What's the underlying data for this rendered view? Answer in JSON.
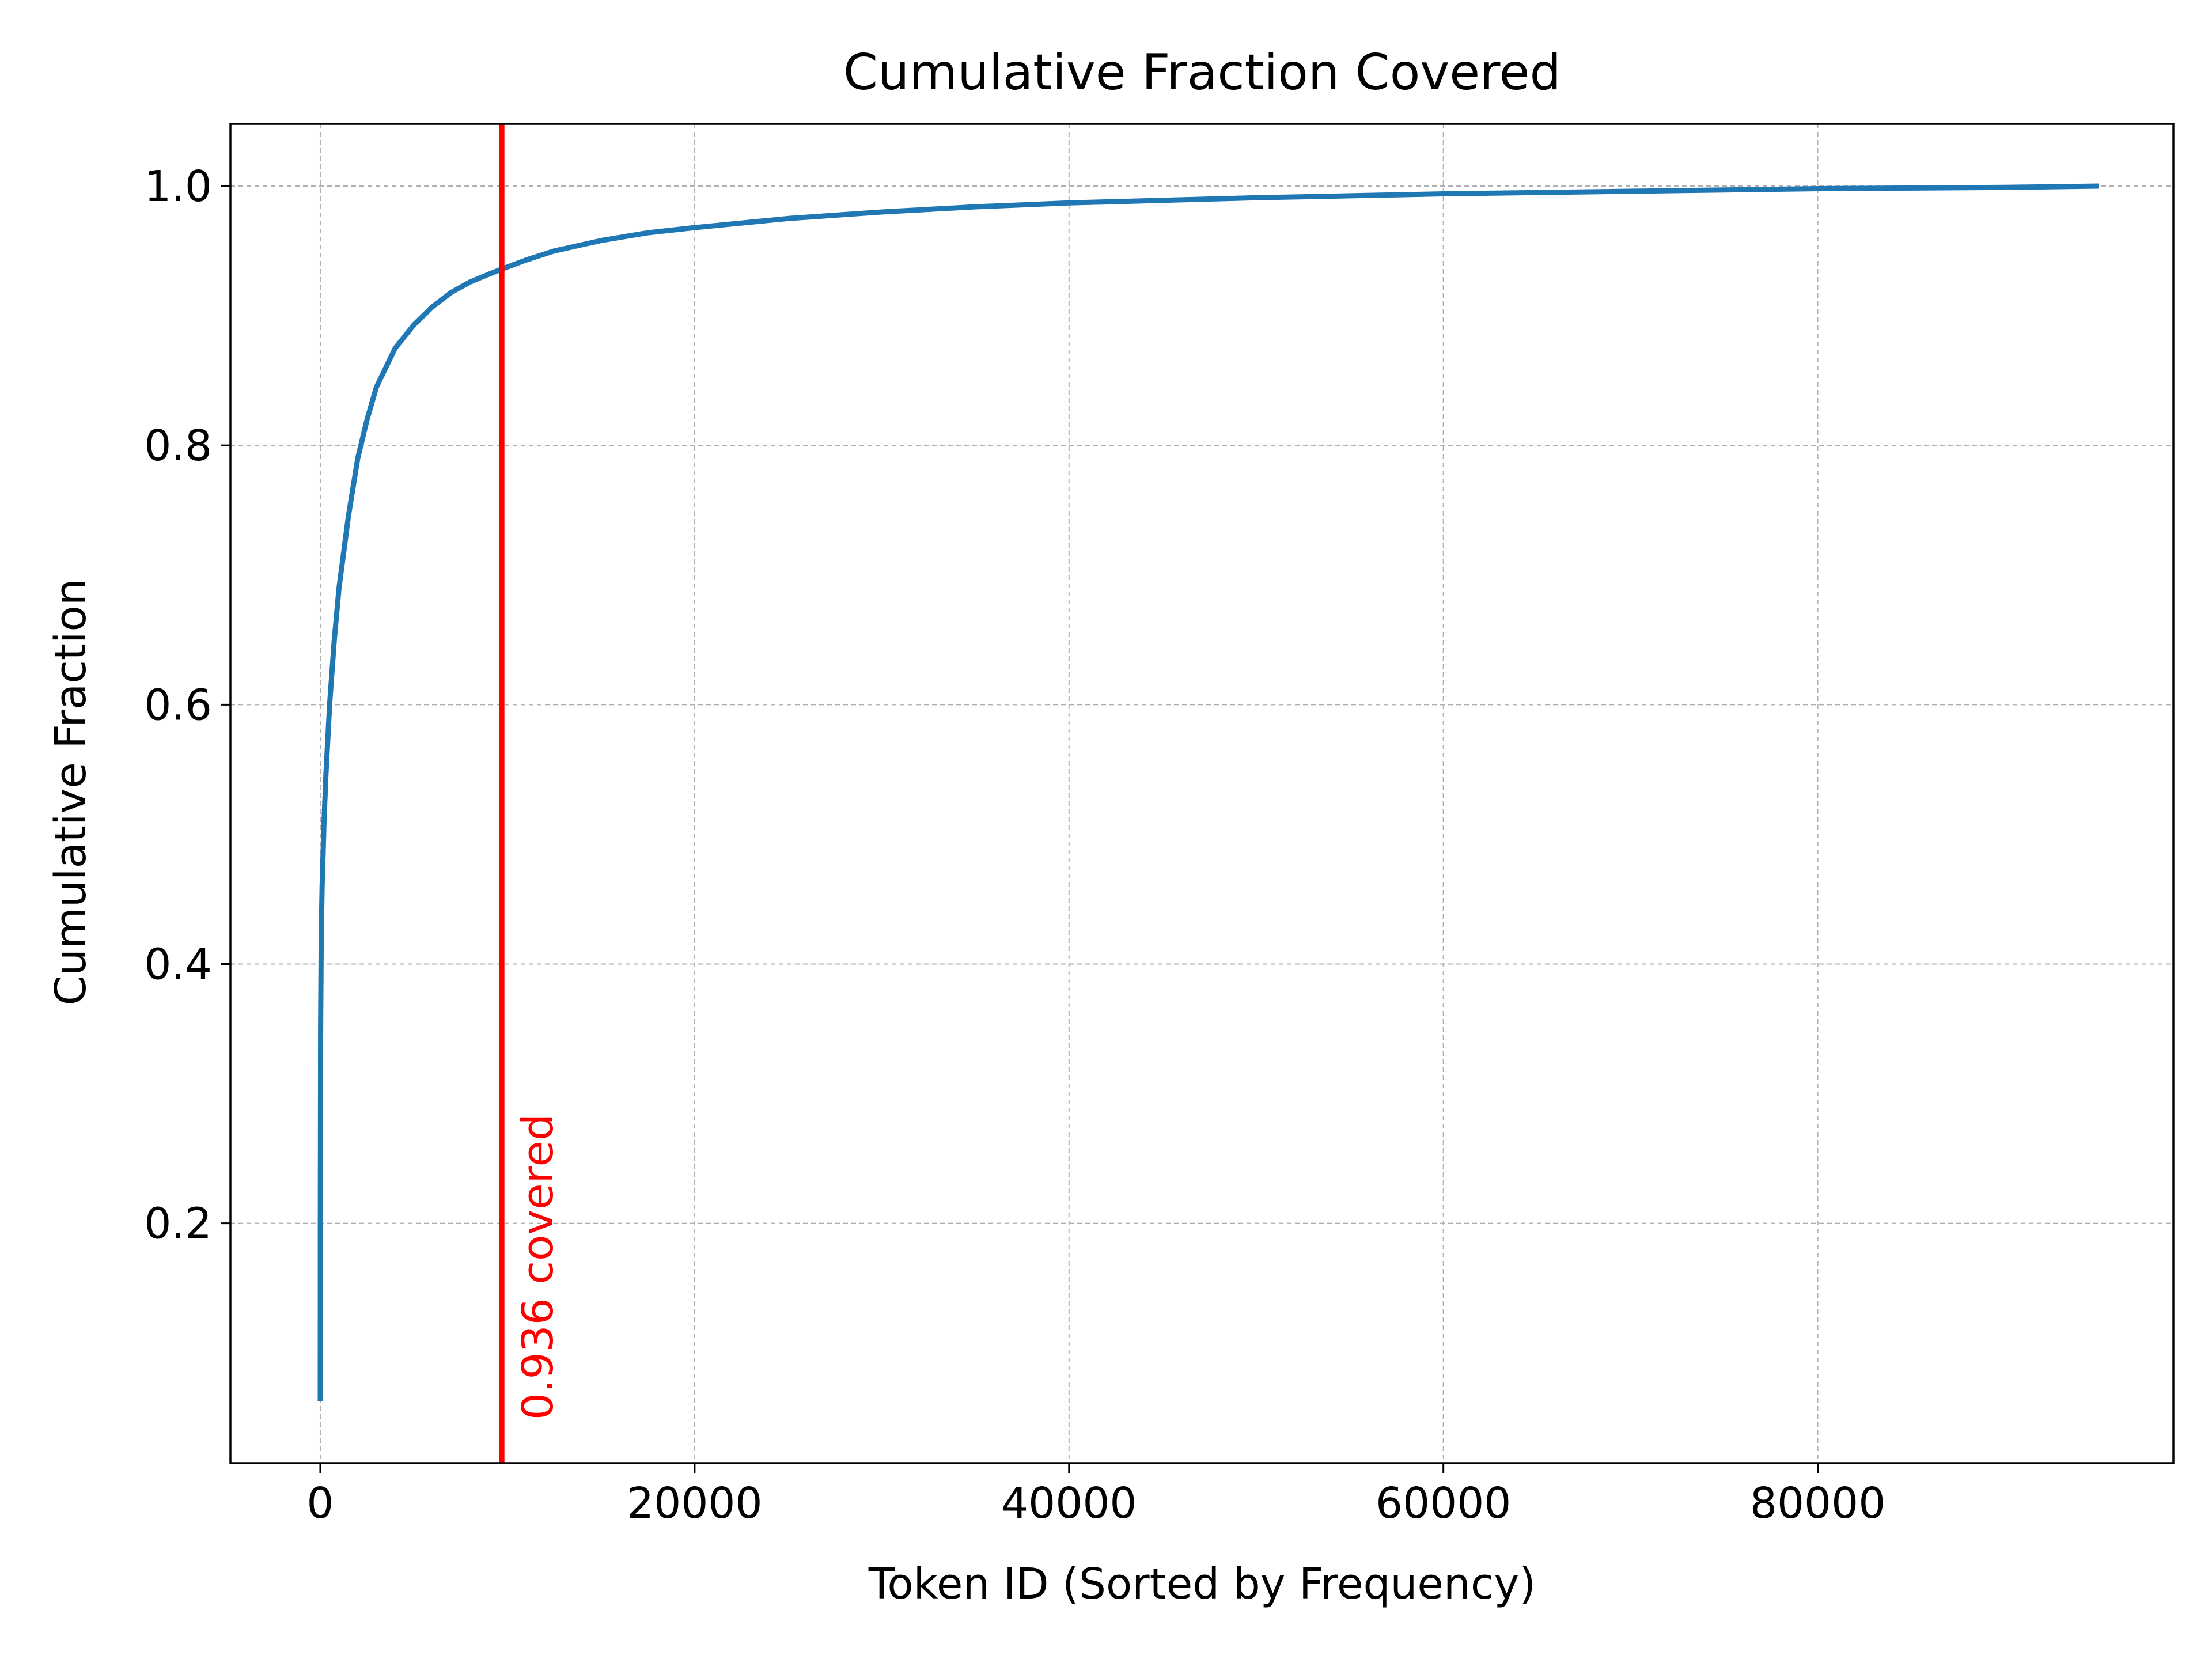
{
  "chart_data": {
    "type": "line",
    "title": "Cumulative Fraction Covered",
    "xlabel": "Token ID (Sorted by Frequency)",
    "ylabel": "Cumulative Fraction",
    "xlim": [
      -4800,
      99000
    ],
    "ylim": [
      0.015,
      1.048
    ],
    "x_ticks": [
      0,
      20000,
      40000,
      60000,
      80000
    ],
    "y_ticks": [
      0.2,
      0.4,
      0.6,
      0.8,
      1.0
    ],
    "x_tick_labels": [
      "0",
      "20000",
      "40000",
      "60000",
      "80000"
    ],
    "y_tick_labels": [
      "0.2",
      "0.4",
      "0.6",
      "0.8",
      "1.0"
    ],
    "grid": true,
    "series": [
      {
        "color": "#1f77b4",
        "x": [
          0,
          5,
          20,
          50,
          100,
          200,
          300,
          500,
          750,
          1000,
          1500,
          2000,
          2500,
          3000,
          4000,
          5000,
          6000,
          7000,
          8000,
          9000,
          9700,
          11000,
          12500,
          15000,
          17500,
          20000,
          25000,
          30000,
          35000,
          40000,
          50000,
          60000,
          70000,
          80000,
          90000,
          95000
        ],
        "y": [
          0.063,
          0.2,
          0.35,
          0.42,
          0.46,
          0.51,
          0.545,
          0.6,
          0.65,
          0.69,
          0.745,
          0.79,
          0.82,
          0.845,
          0.875,
          0.893,
          0.907,
          0.918,
          0.926,
          0.932,
          0.936,
          0.943,
          0.95,
          0.958,
          0.964,
          0.968,
          0.975,
          0.98,
          0.984,
          0.987,
          0.991,
          0.994,
          0.996,
          0.998,
          0.999,
          1.0
        ]
      }
    ],
    "vline": {
      "x": 9700,
      "color": "#ff0000",
      "label": "0.936 covered"
    }
  }
}
